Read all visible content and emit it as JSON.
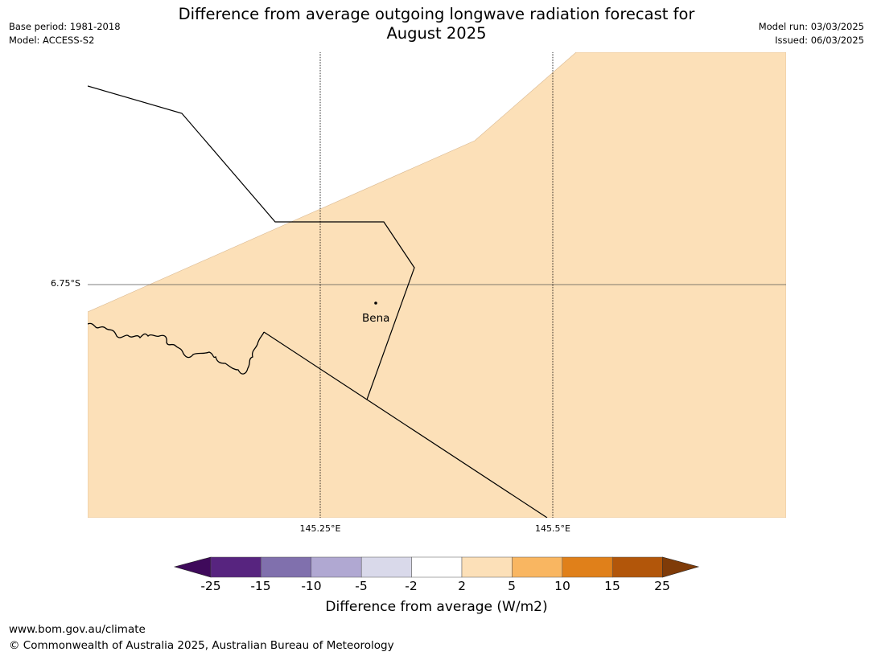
{
  "header": {
    "title_line1": "Difference from average outgoing longwave radiation forecast for",
    "title_line2": "August 2025",
    "base_period": "Base period: 1981-2018",
    "model": "Model: ACCESS-S2",
    "model_run": "Model run: 03/03/2025",
    "issued": "Issued: 06/03/2025"
  },
  "map": {
    "latitude_labels": [
      "6.75°S"
    ],
    "longitude_labels": [
      "145.25°E",
      "145.5°E"
    ],
    "place": {
      "name": "Bena"
    },
    "fill_color": "#fce0b8",
    "fill_category": "2 to 5"
  },
  "colorbar": {
    "ticks": [
      "-25",
      "-15",
      "-10",
      "-5",
      "-2",
      "2",
      "5",
      "10",
      "15",
      "25"
    ],
    "colors": [
      "#3f0a5b",
      "#57247f",
      "#8070ad",
      "#b0a8d2",
      "#d9d9ea",
      "#ffffff",
      "#fce0b8",
      "#f9b661",
      "#e0801a",
      "#b2560a",
      "#7f3b08"
    ],
    "label": "Difference from average (W/m2)"
  },
  "footer": {
    "url": "www.bom.gov.au/climate",
    "copyright": "© Commonwealth of Australia 2025, Australian Bureau of Meteorology"
  }
}
